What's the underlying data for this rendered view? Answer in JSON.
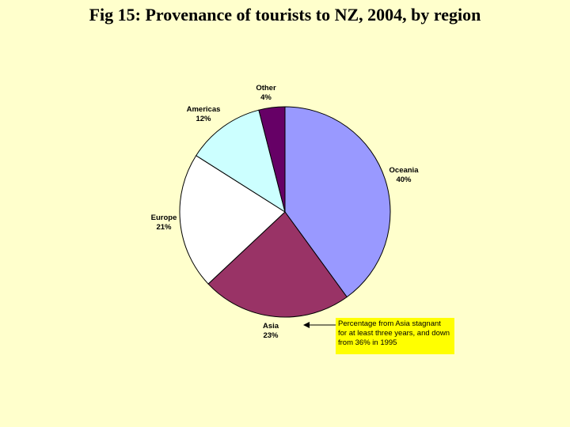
{
  "slide": {
    "title": "Fig 15: Provenance of tourists to NZ, 2004, by region"
  },
  "chart_data": {
    "type": "pie",
    "title": "Fig 15: Provenance of tourists to NZ, 2004, by region",
    "unit": "%",
    "slices": [
      {
        "label": "Oceania",
        "value": 40,
        "display": "40%",
        "color": "#9999FF"
      },
      {
        "label": "Asia",
        "value": 23,
        "display": "23%",
        "color": "#993366"
      },
      {
        "label": "Europe",
        "value": 21,
        "display": "21%",
        "color": "#FFFFFF"
      },
      {
        "label": "Americas",
        "value": 12,
        "display": "12%",
        "color": "#CCFFFF"
      },
      {
        "label": "Other",
        "value": 4,
        "display": "4%",
        "color": "#660066"
      }
    ],
    "annotation": {
      "target": "Asia",
      "lines": [
        "Percentage from Asia stagnant",
        "for at least three years, and down",
        "from 36% in 1995"
      ],
      "color": "#FFFF00"
    }
  }
}
